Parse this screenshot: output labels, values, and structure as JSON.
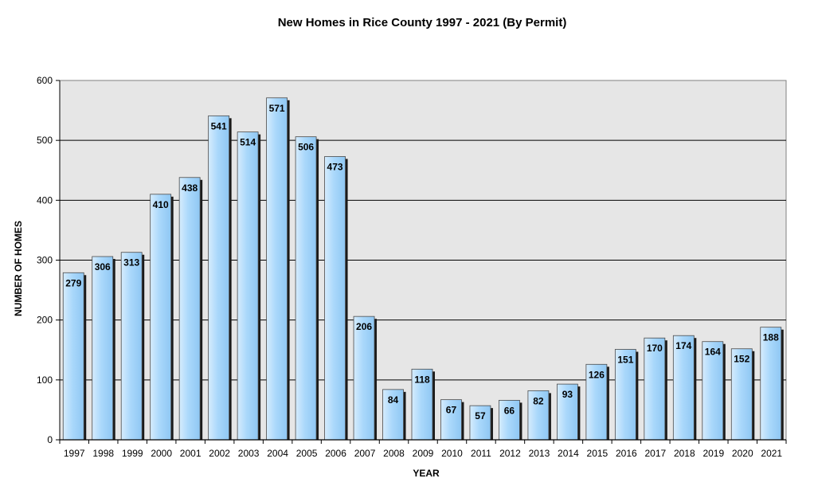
{
  "chart_data": {
    "type": "bar",
    "title": "New Homes in Rice County 1997 - 2021 (By Permit)",
    "xlabel": "YEAR",
    "ylabel": "NUMBER OF HOMES",
    "ylim": [
      0,
      600
    ],
    "yticks": [
      0,
      100,
      200,
      300,
      400,
      500,
      600
    ],
    "grid": true,
    "categories": [
      "1997",
      "1998",
      "1999",
      "2000",
      "2001",
      "2002",
      "2003",
      "2004",
      "2005",
      "2006",
      "2007",
      "2008",
      "2009",
      "2010",
      "2011",
      "2012",
      "2013",
      "2014",
      "2015",
      "2016",
      "2017",
      "2018",
      "2019",
      "2020",
      "2021"
    ],
    "values": [
      279,
      306,
      313,
      410,
      438,
      541,
      514,
      571,
      506,
      473,
      206,
      84,
      118,
      67,
      57,
      66,
      82,
      93,
      126,
      151,
      170,
      174,
      164,
      152,
      188
    ],
    "bar_color": "#a9d7fb",
    "bar_shadow_color": "#1a1a1a",
    "plot_background": "#e6e6e6"
  }
}
